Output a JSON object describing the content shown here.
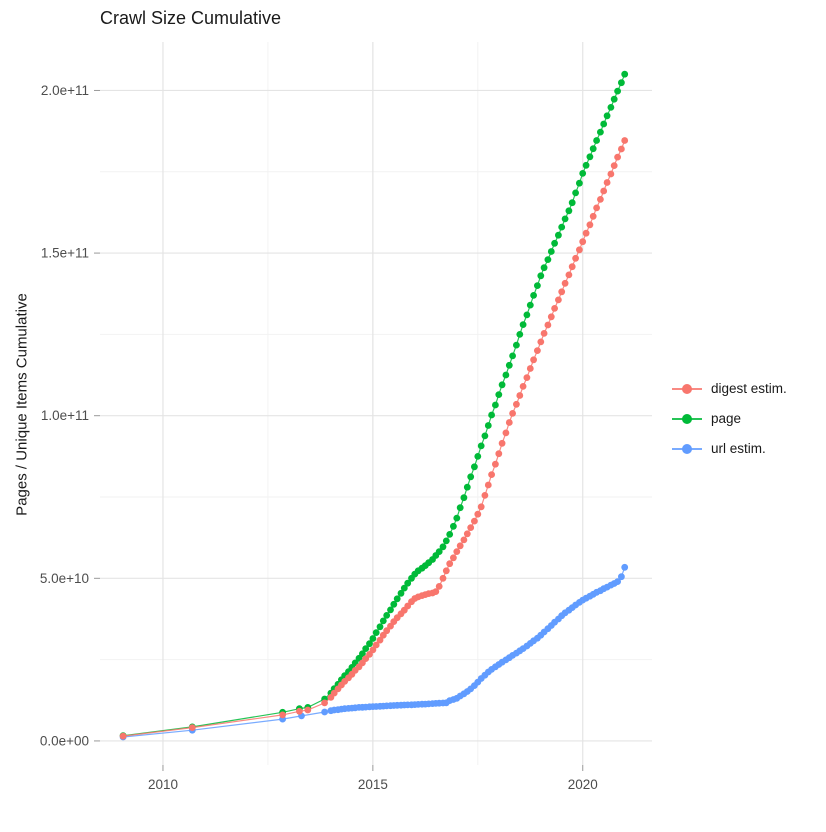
{
  "page": {
    "background": "#FFFFFF"
  },
  "chart_data": {
    "type": "scatter",
    "title": "Crawl Size Cumulative",
    "ylabel": "Pages / Unique Items Cumulative",
    "xlabel": "",
    "legend_position": "right",
    "grid": {
      "major_color": "#E4E4E4",
      "minor_color": "#F2F2F2",
      "tick_color": "#999999"
    },
    "axis_text_color": "#4D4D4D",
    "title_color": "#1A1A1A",
    "x_domain": [
      2008.5,
      2021.65
    ],
    "y_domain_e9": [
      -7.4,
      214.9
    ],
    "x_ticks": [
      {
        "value": 2010,
        "label": "2010"
      },
      {
        "value": 2015,
        "label": "2015"
      },
      {
        "value": 2020,
        "label": "2020"
      }
    ],
    "x_minor_ticks": [
      2012.5,
      2017.5
    ],
    "y_ticks": [
      {
        "value_e9": 0,
        "label": "0.0e+00"
      },
      {
        "value_e9": 50,
        "label": "5.0e+10"
      },
      {
        "value_e9": 100,
        "label": "1.0e+11"
      },
      {
        "value_e9": 150,
        "label": "1.5e+11"
      },
      {
        "value_e9": 200,
        "label": "2.0e+11"
      }
    ],
    "y_minor_ticks_e9": [
      25,
      75,
      125,
      175
    ],
    "value_unit": "1e9 pages / unique items",
    "series": [
      {
        "name": "digest estim.",
        "color": "#F8766D",
        "points_year_value_e9": [
          [
            2009.05,
            1.5
          ],
          [
            2010.7,
            4.1
          ],
          [
            2012.85,
            8.0
          ],
          [
            2013.25,
            9.1
          ],
          [
            2013.45,
            9.5
          ],
          [
            2013.85,
            11.7
          ],
          [
            2014.0,
            13.4
          ],
          [
            2014.08,
            14.7
          ],
          [
            2014.17,
            16.0
          ],
          [
            2014.25,
            17.2
          ],
          [
            2014.33,
            18.3
          ],
          [
            2014.42,
            19.4
          ],
          [
            2014.5,
            20.5
          ],
          [
            2014.58,
            21.7
          ],
          [
            2014.67,
            22.8
          ],
          [
            2014.75,
            24.0
          ],
          [
            2014.83,
            25.3
          ],
          [
            2014.92,
            26.6
          ],
          [
            2015.0,
            28.0
          ],
          [
            2015.08,
            29.5
          ],
          [
            2015.17,
            31.0
          ],
          [
            2015.25,
            32.5
          ],
          [
            2015.33,
            33.9
          ],
          [
            2015.42,
            35.3
          ],
          [
            2015.5,
            36.7
          ],
          [
            2015.58,
            37.9
          ],
          [
            2015.67,
            39.1
          ],
          [
            2015.75,
            40.2
          ],
          [
            2015.83,
            41.5
          ],
          [
            2015.92,
            42.8
          ],
          [
            2016.0,
            43.8
          ],
          [
            2016.08,
            44.3
          ],
          [
            2016.17,
            44.7
          ],
          [
            2016.25,
            45.0
          ],
          [
            2016.33,
            45.3
          ],
          [
            2016.42,
            45.5
          ],
          [
            2016.5,
            45.9
          ],
          [
            2016.58,
            47.5
          ],
          [
            2016.67,
            50.0
          ],
          [
            2016.75,
            52.3
          ],
          [
            2016.83,
            54.5
          ],
          [
            2016.92,
            56.3
          ],
          [
            2017.0,
            58.2
          ],
          [
            2017.08,
            60.0
          ],
          [
            2017.17,
            61.8
          ],
          [
            2017.25,
            63.7
          ],
          [
            2017.33,
            65.6
          ],
          [
            2017.42,
            67.6
          ],
          [
            2017.5,
            69.7
          ],
          [
            2017.58,
            72.0
          ],
          [
            2017.67,
            75.5
          ],
          [
            2017.75,
            78.7
          ],
          [
            2017.83,
            81.9
          ],
          [
            2017.92,
            85.1
          ],
          [
            2018.0,
            88.3
          ],
          [
            2018.08,
            91.5
          ],
          [
            2018.17,
            94.7
          ],
          [
            2018.25,
            97.9
          ],
          [
            2018.33,
            100.7
          ],
          [
            2018.42,
            103.5
          ],
          [
            2018.5,
            106.2
          ],
          [
            2018.58,
            109.0
          ],
          [
            2018.67,
            111.7
          ],
          [
            2018.75,
            114.5
          ],
          [
            2018.83,
            117.2
          ],
          [
            2018.92,
            120.0
          ],
          [
            2019.0,
            122.7
          ],
          [
            2019.08,
            125.3
          ],
          [
            2019.17,
            127.9
          ],
          [
            2019.25,
            130.4
          ],
          [
            2019.33,
            133.0
          ],
          [
            2019.42,
            135.6
          ],
          [
            2019.5,
            138.1
          ],
          [
            2019.58,
            140.7
          ],
          [
            2019.67,
            143.3
          ],
          [
            2019.75,
            145.8
          ],
          [
            2019.83,
            148.4
          ],
          [
            2019.92,
            151.0
          ],
          [
            2020.0,
            153.5
          ],
          [
            2020.08,
            156.1
          ],
          [
            2020.17,
            158.7
          ],
          [
            2020.25,
            161.3
          ],
          [
            2020.33,
            163.9
          ],
          [
            2020.42,
            166.5
          ],
          [
            2020.5,
            169.1
          ],
          [
            2020.58,
            171.7
          ],
          [
            2020.67,
            174.3
          ],
          [
            2020.75,
            176.9
          ],
          [
            2020.83,
            179.5
          ],
          [
            2020.92,
            182.0
          ],
          [
            2021.0,
            184.6
          ]
        ]
      },
      {
        "name": "page",
        "color": "#00BA38",
        "points_year_value_e9": [
          [
            2009.05,
            1.6
          ],
          [
            2010.7,
            4.3
          ],
          [
            2012.85,
            8.8
          ],
          [
            2013.25,
            9.9
          ],
          [
            2013.45,
            10.3
          ],
          [
            2013.85,
            12.9
          ],
          [
            2014.0,
            14.7
          ],
          [
            2014.08,
            16.1
          ],
          [
            2014.17,
            17.4
          ],
          [
            2014.25,
            18.8
          ],
          [
            2014.33,
            20.1
          ],
          [
            2014.42,
            21.3
          ],
          [
            2014.5,
            22.6
          ],
          [
            2014.58,
            24.0
          ],
          [
            2014.67,
            25.4
          ],
          [
            2014.75,
            26.8
          ],
          [
            2014.83,
            28.4
          ],
          [
            2014.92,
            29.9
          ],
          [
            2015.0,
            31.5
          ],
          [
            2015.08,
            33.3
          ],
          [
            2015.17,
            35.1
          ],
          [
            2015.25,
            36.9
          ],
          [
            2015.33,
            38.6
          ],
          [
            2015.42,
            40.3
          ],
          [
            2015.5,
            42.0
          ],
          [
            2015.58,
            43.7
          ],
          [
            2015.67,
            45.4
          ],
          [
            2015.75,
            47.0
          ],
          [
            2015.83,
            48.5
          ],
          [
            2015.92,
            50.0
          ],
          [
            2016.0,
            51.3
          ],
          [
            2016.08,
            52.3
          ],
          [
            2016.17,
            53.1
          ],
          [
            2016.25,
            53.9
          ],
          [
            2016.33,
            54.8
          ],
          [
            2016.42,
            55.8
          ],
          [
            2016.5,
            57.0
          ],
          [
            2016.58,
            58.2
          ],
          [
            2016.67,
            59.7
          ],
          [
            2016.75,
            61.5
          ],
          [
            2016.83,
            63.5
          ],
          [
            2016.92,
            66.0
          ],
          [
            2017.0,
            68.5
          ],
          [
            2017.08,
            71.7
          ],
          [
            2017.17,
            74.8
          ],
          [
            2017.25,
            78.0
          ],
          [
            2017.33,
            81.2
          ],
          [
            2017.42,
            84.3
          ],
          [
            2017.5,
            87.5
          ],
          [
            2017.58,
            90.7
          ],
          [
            2017.67,
            93.8
          ],
          [
            2017.75,
            97.0
          ],
          [
            2017.83,
            100.2
          ],
          [
            2017.92,
            103.3
          ],
          [
            2018.0,
            106.5
          ],
          [
            2018.08,
            109.5
          ],
          [
            2018.17,
            112.5
          ],
          [
            2018.25,
            115.5
          ],
          [
            2018.33,
            118.4
          ],
          [
            2018.42,
            121.7
          ],
          [
            2018.5,
            125.0
          ],
          [
            2018.58,
            128.0
          ],
          [
            2018.67,
            131.0
          ],
          [
            2018.75,
            134.0
          ],
          [
            2018.83,
            137.0
          ],
          [
            2018.92,
            140.0
          ],
          [
            2019.0,
            143.0
          ],
          [
            2019.08,
            145.5
          ],
          [
            2019.17,
            148.0
          ],
          [
            2019.25,
            150.5
          ],
          [
            2019.33,
            153.0
          ],
          [
            2019.42,
            155.5
          ],
          [
            2019.5,
            158.0
          ],
          [
            2019.58,
            160.5
          ],
          [
            2019.67,
            163.0
          ],
          [
            2019.75,
            165.5
          ],
          [
            2019.83,
            168.5
          ],
          [
            2019.92,
            171.5
          ],
          [
            2020.0,
            174.5
          ],
          [
            2020.08,
            177.0
          ],
          [
            2020.17,
            179.6
          ],
          [
            2020.25,
            182.1
          ],
          [
            2020.33,
            184.6
          ],
          [
            2020.42,
            187.2
          ],
          [
            2020.5,
            189.7
          ],
          [
            2020.58,
            192.2
          ],
          [
            2020.67,
            194.8
          ],
          [
            2020.75,
            197.3
          ],
          [
            2020.83,
            199.8
          ],
          [
            2020.92,
            202.4
          ],
          [
            2021.0,
            205.0
          ]
        ]
      },
      {
        "name": "url estim.",
        "color": "#619CFF",
        "points_year_value_e9": [
          [
            2009.05,
            1.2
          ],
          [
            2010.7,
            3.3
          ],
          [
            2012.85,
            6.7
          ],
          [
            2013.3,
            7.7
          ],
          [
            2013.85,
            8.9
          ],
          [
            2014.0,
            9.3
          ],
          [
            2014.08,
            9.5
          ],
          [
            2014.17,
            9.6
          ],
          [
            2014.25,
            9.8
          ],
          [
            2014.33,
            9.9
          ],
          [
            2014.42,
            10.0
          ],
          [
            2014.5,
            10.1
          ],
          [
            2014.58,
            10.2
          ],
          [
            2014.67,
            10.3
          ],
          [
            2014.75,
            10.35
          ],
          [
            2014.83,
            10.4
          ],
          [
            2014.92,
            10.5
          ],
          [
            2015.0,
            10.55
          ],
          [
            2015.08,
            10.6
          ],
          [
            2015.17,
            10.66
          ],
          [
            2015.25,
            10.72
          ],
          [
            2015.33,
            10.78
          ],
          [
            2015.42,
            10.84
          ],
          [
            2015.5,
            10.9
          ],
          [
            2015.58,
            10.95
          ],
          [
            2015.67,
            11.0
          ],
          [
            2015.75,
            11.05
          ],
          [
            2015.83,
            11.08
          ],
          [
            2015.92,
            11.12
          ],
          [
            2016.0,
            11.16
          ],
          [
            2016.08,
            11.22
          ],
          [
            2016.17,
            11.28
          ],
          [
            2016.25,
            11.34
          ],
          [
            2016.33,
            11.4
          ],
          [
            2016.42,
            11.47
          ],
          [
            2016.5,
            11.54
          ],
          [
            2016.58,
            11.6
          ],
          [
            2016.67,
            11.66
          ],
          [
            2016.75,
            11.72
          ],
          [
            2016.83,
            12.4
          ],
          [
            2016.92,
            12.75
          ],
          [
            2017.0,
            13.1
          ],
          [
            2017.08,
            13.8
          ],
          [
            2017.17,
            14.5
          ],
          [
            2017.25,
            15.2
          ],
          [
            2017.33,
            16.0
          ],
          [
            2017.42,
            17.0
          ],
          [
            2017.5,
            18.1
          ],
          [
            2017.58,
            19.2
          ],
          [
            2017.67,
            20.2
          ],
          [
            2017.75,
            21.2
          ],
          [
            2017.83,
            22.0
          ],
          [
            2017.92,
            22.8
          ],
          [
            2018.0,
            23.5
          ],
          [
            2018.08,
            24.2
          ],
          [
            2018.17,
            24.9
          ],
          [
            2018.25,
            25.6
          ],
          [
            2018.33,
            26.3
          ],
          [
            2018.42,
            27.0
          ],
          [
            2018.5,
            27.7
          ],
          [
            2018.58,
            28.4
          ],
          [
            2018.67,
            29.2
          ],
          [
            2018.75,
            30.0
          ],
          [
            2018.83,
            30.8
          ],
          [
            2018.92,
            31.6
          ],
          [
            2019.0,
            32.5
          ],
          [
            2019.08,
            33.5
          ],
          [
            2019.17,
            34.5
          ],
          [
            2019.25,
            35.5
          ],
          [
            2019.33,
            36.5
          ],
          [
            2019.42,
            37.5
          ],
          [
            2019.5,
            38.5
          ],
          [
            2019.58,
            39.4
          ],
          [
            2019.67,
            40.2
          ],
          [
            2019.75,
            41.0
          ],
          [
            2019.83,
            41.8
          ],
          [
            2019.92,
            42.6
          ],
          [
            2020.0,
            43.3
          ],
          [
            2020.08,
            43.9
          ],
          [
            2020.17,
            44.5
          ],
          [
            2020.25,
            45.1
          ],
          [
            2020.33,
            45.7
          ],
          [
            2020.42,
            46.2
          ],
          [
            2020.5,
            46.8
          ],
          [
            2020.58,
            47.3
          ],
          [
            2020.67,
            47.9
          ],
          [
            2020.75,
            48.4
          ],
          [
            2020.83,
            49.0
          ],
          [
            2020.92,
            50.5
          ],
          [
            2021.0,
            53.4
          ]
        ]
      }
    ]
  }
}
